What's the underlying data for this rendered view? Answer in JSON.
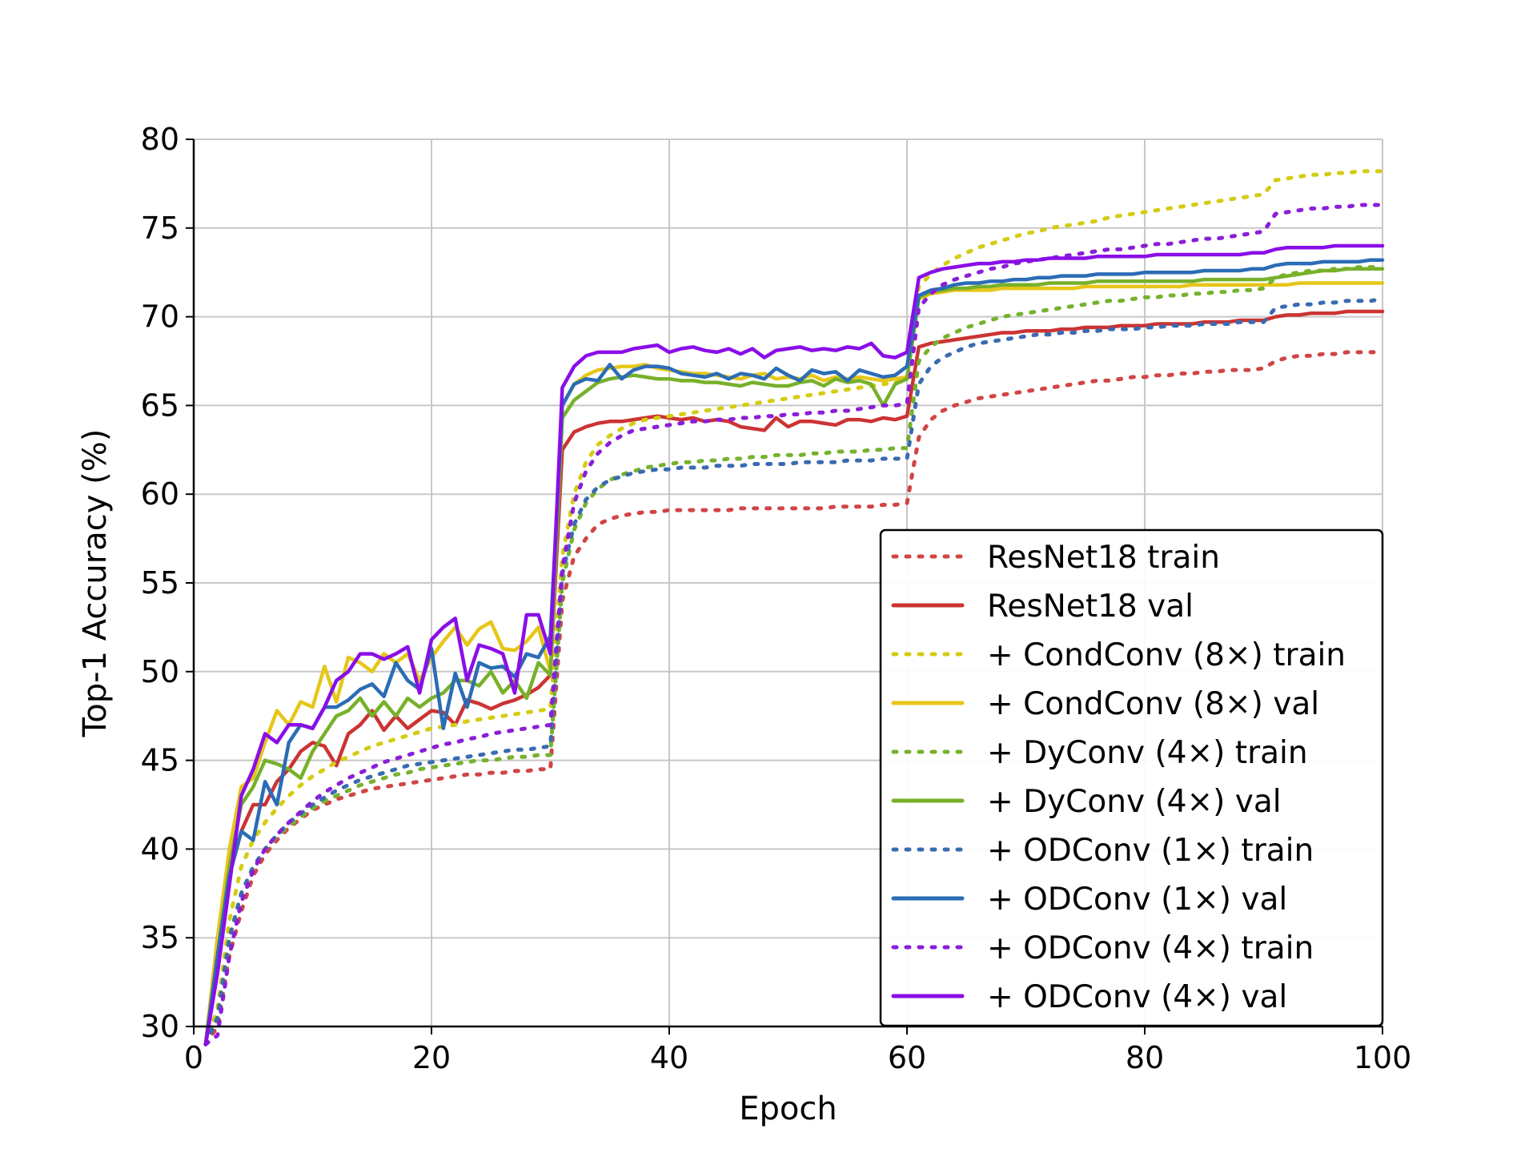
{
  "chart_data": {
    "type": "line",
    "xlabel": "Epoch",
    "ylabel": "Top-1 Accuracy (%)",
    "xlim": [
      0,
      100
    ],
    "ylim": [
      30,
      80
    ],
    "x_ticks": [
      "0",
      "20",
      "40",
      "60",
      "80",
      "100"
    ],
    "y_ticks": [
      "30",
      "35",
      "40",
      "45",
      "50",
      "55",
      "60",
      "65",
      "70",
      "75",
      "80"
    ],
    "grid": true,
    "legend_position": "bottom-right",
    "x": [
      1,
      2,
      3,
      4,
      5,
      6,
      7,
      8,
      9,
      10,
      11,
      12,
      13,
      14,
      15,
      16,
      17,
      18,
      19,
      20,
      21,
      22,
      23,
      24,
      25,
      26,
      27,
      28,
      29,
      30,
      31,
      32,
      33,
      34,
      35,
      36,
      37,
      38,
      39,
      40,
      41,
      42,
      43,
      44,
      45,
      46,
      47,
      48,
      49,
      50,
      51,
      52,
      53,
      54,
      55,
      56,
      57,
      58,
      59,
      60,
      61,
      62,
      63,
      64,
      65,
      66,
      67,
      68,
      69,
      70,
      71,
      72,
      73,
      74,
      75,
      76,
      77,
      78,
      79,
      80,
      81,
      82,
      83,
      84,
      85,
      86,
      87,
      88,
      89,
      90,
      91,
      92,
      93,
      94,
      95,
      96,
      97,
      98,
      99,
      100
    ],
    "series": [
      {
        "name": "ResNet18 train",
        "color": "#d04545",
        "dash": "dotted",
        "values": [
          29,
          30,
          34,
          36.5,
          38.5,
          39.7,
          40.5,
          41.2,
          41.7,
          42.2,
          42.5,
          42.8,
          43,
          43.2,
          43.4,
          43.5,
          43.6,
          43.7,
          43.8,
          43.9,
          44,
          44.1,
          44.2,
          44.2,
          44.3,
          44.3,
          44.4,
          44.4,
          44.5,
          44.5,
          54,
          56.5,
          57.5,
          58.3,
          58.6,
          58.8,
          58.9,
          59,
          59,
          59.1,
          59.1,
          59.1,
          59.1,
          59.1,
          59.1,
          59.2,
          59.2,
          59.2,
          59.2,
          59.2,
          59.2,
          59.2,
          59.2,
          59.3,
          59.3,
          59.3,
          59.3,
          59.4,
          59.4,
          59.5,
          63.2,
          64.2,
          64.7,
          65,
          65.2,
          65.4,
          65.5,
          65.6,
          65.7,
          65.8,
          65.9,
          66,
          66.1,
          66.2,
          66.3,
          66.4,
          66.4,
          66.5,
          66.6,
          66.6,
          66.7,
          66.7,
          66.8,
          66.8,
          66.9,
          66.9,
          67,
          67,
          67,
          67.1,
          67.5,
          67.7,
          67.8,
          67.8,
          67.9,
          67.9,
          68,
          68,
          68,
          68
        ]
      },
      {
        "name": "ResNet18 val",
        "color": "#cc3333",
        "dash": "solid",
        "values": [
          29,
          35,
          38.5,
          41,
          42.5,
          42.5,
          43.8,
          44.5,
          45.5,
          46,
          45.8,
          44.7,
          46.5,
          47,
          47.8,
          46.7,
          47.5,
          46.8,
          47.3,
          47.8,
          47.7,
          47,
          48.4,
          48.2,
          47.9,
          48.2,
          48.4,
          48.7,
          49.1,
          49.8,
          62.5,
          63.5,
          63.8,
          64,
          64.1,
          64.1,
          64.2,
          64.3,
          64.4,
          64.3,
          64.2,
          64.3,
          64.1,
          64.2,
          64.1,
          63.8,
          63.7,
          63.6,
          64.3,
          63.8,
          64.1,
          64.1,
          64,
          63.9,
          64.2,
          64.2,
          64.1,
          64.3,
          64.2,
          64.4,
          68.3,
          68.5,
          68.6,
          68.7,
          68.8,
          68.9,
          69,
          69.1,
          69.1,
          69.2,
          69.2,
          69.2,
          69.3,
          69.3,
          69.4,
          69.4,
          69.4,
          69.5,
          69.5,
          69.5,
          69.6,
          69.6,
          69.6,
          69.6,
          69.7,
          69.7,
          69.7,
          69.8,
          69.8,
          69.8,
          70,
          70.1,
          70.1,
          70.2,
          70.2,
          70.2,
          70.3,
          70.3,
          70.3,
          70.3
        ]
      },
      {
        "name": "+ CondConv (8×) train",
        "color": "#d4cc12",
        "dash": "dotted",
        "values": [
          29,
          31,
          36,
          39,
          40.5,
          41.5,
          42.3,
          43,
          43.6,
          44.1,
          44.5,
          44.9,
          45.2,
          45.5,
          45.8,
          46,
          46.2,
          46.4,
          46.6,
          46.8,
          46.9,
          47,
          47.2,
          47.3,
          47.4,
          47.5,
          47.6,
          47.7,
          47.8,
          47.9,
          56.5,
          60,
          61.8,
          62.8,
          63.3,
          63.7,
          64,
          64.2,
          64.3,
          64.4,
          64.5,
          64.6,
          64.7,
          64.8,
          64.9,
          65,
          65.1,
          65.2,
          65.3,
          65.4,
          65.5,
          65.6,
          65.7,
          65.8,
          65.9,
          66,
          66.1,
          66.2,
          66.3,
          66.4,
          71.7,
          72.4,
          72.9,
          73.3,
          73.6,
          73.9,
          74.1,
          74.3,
          74.5,
          74.7,
          74.8,
          75,
          75.1,
          75.2,
          75.3,
          75.4,
          75.6,
          75.7,
          75.8,
          75.9,
          76,
          76.1,
          76.2,
          76.3,
          76.4,
          76.5,
          76.6,
          76.7,
          76.8,
          76.9,
          77.7,
          77.8,
          77.9,
          78,
          78,
          78.1,
          78.1,
          78.2,
          78.2,
          78.2
        ]
      },
      {
        "name": "+ CondConv (8×) val",
        "color": "#e6c619",
        "dash": "solid",
        "values": [
          29,
          35,
          40,
          43.5,
          44,
          46,
          47.8,
          47,
          48.3,
          48,
          50.3,
          48.3,
          50.8,
          50.5,
          50,
          51,
          50.5,
          51,
          49.5,
          50.8,
          51.7,
          52.5,
          51.5,
          52.4,
          52.8,
          51.3,
          51.2,
          51.7,
          52.5,
          50,
          65,
          66.2,
          66.7,
          67,
          67.1,
          67.2,
          67.2,
          67.3,
          67.1,
          67,
          66.9,
          66.8,
          66.8,
          66.7,
          66.6,
          66.5,
          66.7,
          66.8,
          66.5,
          66.6,
          66.5,
          66.7,
          66.4,
          66.6,
          66.5,
          66.6,
          66.5,
          66.4,
          66.5,
          66.6,
          71,
          71.3,
          71.4,
          71.5,
          71.5,
          71.5,
          71.5,
          71.6,
          71.6,
          71.6,
          71.6,
          71.6,
          71.6,
          71.6,
          71.7,
          71.7,
          71.7,
          71.7,
          71.7,
          71.7,
          71.7,
          71.7,
          71.7,
          71.8,
          71.8,
          71.8,
          71.8,
          71.8,
          71.8,
          71.8,
          71.8,
          71.8,
          71.9,
          71.9,
          71.9,
          71.9,
          71.9,
          71.9,
          71.9,
          71.9
        ]
      },
      {
        "name": "+ DyConv (4×) train",
        "color": "#76b22e",
        "dash": "dotted",
        "values": [
          29,
          30.5,
          35,
          37.5,
          39,
          40,
          40.7,
          41.3,
          41.8,
          42.3,
          42.7,
          43,
          43.3,
          43.6,
          43.8,
          44,
          44.2,
          44.3,
          44.5,
          44.6,
          44.7,
          44.8,
          44.9,
          45,
          45,
          45.1,
          45.2,
          45.2,
          45.3,
          45.3,
          55,
          58,
          59.5,
          60.3,
          60.8,
          61.1,
          61.3,
          61.5,
          61.6,
          61.7,
          61.8,
          61.8,
          61.9,
          61.9,
          62,
          62,
          62.1,
          62.1,
          62.2,
          62.2,
          62.2,
          62.3,
          62.3,
          62.4,
          62.4,
          62.4,
          62.5,
          62.5,
          62.6,
          62.6,
          67.5,
          68.3,
          68.8,
          69.1,
          69.4,
          69.6,
          69.8,
          70,
          70.1,
          70.2,
          70.3,
          70.4,
          70.5,
          70.6,
          70.7,
          70.8,
          70.9,
          70.9,
          71,
          71.1,
          71.1,
          71.2,
          71.2,
          71.3,
          71.3,
          71.4,
          71.4,
          71.5,
          71.5,
          71.6,
          72.2,
          72.4,
          72.5,
          72.6,
          72.6,
          72.7,
          72.7,
          72.8,
          72.8,
          72.8
        ]
      },
      {
        "name": "+ DyConv (4×) val",
        "color": "#77b02a",
        "dash": "solid",
        "values": [
          29,
          34,
          39,
          42.5,
          43.5,
          45,
          44.8,
          44.5,
          44,
          45.5,
          46.5,
          47.5,
          47.8,
          48.5,
          47.5,
          48.3,
          47.5,
          48.5,
          48,
          48.5,
          48.8,
          49.5,
          49.5,
          49.2,
          50,
          48.8,
          49.5,
          48.5,
          50.5,
          49.8,
          64.3,
          65.3,
          65.8,
          66.3,
          66.5,
          66.6,
          66.7,
          66.6,
          66.5,
          66.5,
          66.4,
          66.4,
          66.3,
          66.3,
          66.2,
          66.1,
          66.3,
          66.2,
          66.1,
          66.1,
          66.3,
          66.4,
          66.1,
          66.5,
          66.3,
          66.4,
          66.2,
          65,
          66.2,
          66.5,
          71.1,
          71.4,
          71.5,
          71.6,
          71.6,
          71.7,
          71.7,
          71.8,
          71.8,
          71.8,
          71.8,
          71.9,
          71.9,
          71.9,
          71.9,
          72,
          72,
          72,
          72,
          72,
          72,
          72,
          72,
          72,
          72.1,
          72.1,
          72.1,
          72.1,
          72.1,
          72.1,
          72.2,
          72.3,
          72.4,
          72.5,
          72.6,
          72.6,
          72.7,
          72.7,
          72.7,
          72.7
        ]
      },
      {
        "name": "+ ODConv (1×) train",
        "color": "#3a6bb0",
        "dash": "dotted",
        "values": [
          29,
          30.5,
          35,
          37.5,
          39,
          40,
          40.8,
          41.5,
          42,
          42.5,
          42.9,
          43.3,
          43.6,
          43.9,
          44.1,
          44.3,
          44.5,
          44.7,
          44.8,
          44.9,
          45,
          45.1,
          45.2,
          45.3,
          45.4,
          45.5,
          45.6,
          45.6,
          45.7,
          45.8,
          55.5,
          58.3,
          59.7,
          60.4,
          60.8,
          61,
          61.2,
          61.3,
          61.4,
          61.4,
          61.5,
          61.5,
          61.5,
          61.6,
          61.6,
          61.6,
          61.7,
          61.7,
          61.7,
          61.7,
          61.8,
          61.8,
          61.8,
          61.8,
          61.9,
          61.9,
          61.9,
          62,
          62,
          62,
          66.2,
          67.2,
          67.7,
          68,
          68.3,
          68.5,
          68.6,
          68.7,
          68.8,
          68.9,
          69,
          69,
          69.1,
          69.1,
          69.2,
          69.2,
          69.3,
          69.3,
          69.3,
          69.4,
          69.4,
          69.5,
          69.5,
          69.5,
          69.6,
          69.6,
          69.6,
          69.7,
          69.7,
          69.7,
          70.5,
          70.6,
          70.7,
          70.7,
          70.8,
          70.8,
          70.9,
          70.9,
          70.9,
          71
        ]
      },
      {
        "name": "+ ODConv (1×) val",
        "color": "#2b6cb5",
        "dash": "solid",
        "values": [
          29,
          34,
          38.5,
          41,
          40.5,
          43.8,
          42.5,
          46,
          47,
          46.8,
          48,
          48,
          48.4,
          49,
          49.3,
          48.6,
          50.5,
          49.5,
          49,
          51.3,
          46.8,
          49.9,
          48,
          50.5,
          50.2,
          50.3,
          49.7,
          51,
          50.8,
          52,
          65,
          66.2,
          66.5,
          66.4,
          67.3,
          66.5,
          67,
          67.2,
          67.2,
          67.1,
          66.8,
          66.7,
          66.6,
          66.8,
          66.5,
          66.8,
          66.7,
          66.5,
          67.1,
          66.7,
          66.4,
          67,
          66.8,
          66.9,
          66.4,
          67,
          66.8,
          66.6,
          66.7,
          67.2,
          71.2,
          71.5,
          71.6,
          71.8,
          71.9,
          71.9,
          72,
          72,
          72.1,
          72.1,
          72.2,
          72.2,
          72.3,
          72.3,
          72.3,
          72.4,
          72.4,
          72.4,
          72.4,
          72.5,
          72.5,
          72.5,
          72.5,
          72.5,
          72.6,
          72.6,
          72.6,
          72.6,
          72.7,
          72.7,
          72.9,
          73,
          73,
          73,
          73.1,
          73.1,
          73.1,
          73.1,
          73.2,
          73.2
        ]
      },
      {
        "name": "+ ODConv (4×) train",
        "color": "#8a1ed8",
        "dash": "dotted",
        "values": [
          29,
          29.5,
          34,
          37,
          38.8,
          40,
          40.8,
          41.5,
          42.1,
          42.7,
          43.2,
          43.6,
          44,
          44.3,
          44.6,
          44.9,
          45.1,
          45.3,
          45.5,
          45.7,
          45.9,
          46,
          46.2,
          46.3,
          46.5,
          46.6,
          46.7,
          46.8,
          46.9,
          47,
          55.8,
          59.5,
          61.3,
          62.3,
          62.9,
          63.3,
          63.6,
          63.7,
          63.8,
          63.9,
          64,
          64.1,
          64.1,
          64.2,
          64.2,
          64.3,
          64.3,
          64.4,
          64.4,
          64.5,
          64.5,
          64.6,
          64.6,
          64.7,
          64.7,
          64.8,
          64.9,
          65,
          65,
          65.1,
          70.5,
          71.3,
          71.8,
          72.1,
          72.3,
          72.5,
          72.7,
          72.8,
          73,
          73.1,
          73.2,
          73.3,
          73.4,
          73.5,
          73.6,
          73.7,
          73.8,
          73.8,
          73.9,
          74,
          74.1,
          74.1,
          74.2,
          74.3,
          74.4,
          74.4,
          74.5,
          74.6,
          74.7,
          74.8,
          75.8,
          75.9,
          76,
          76.1,
          76.1,
          76.2,
          76.2,
          76.3,
          76.3,
          76.3
        ]
      },
      {
        "name": "+ ODConv (4×) val",
        "color": "#8a0ee8",
        "dash": "solid",
        "values": [
          29,
          33,
          38,
          43,
          44.5,
          46.5,
          46,
          47,
          47,
          46.8,
          48,
          49.5,
          50,
          51,
          51,
          50.7,
          51,
          51.4,
          48.8,
          51.8,
          52.5,
          53,
          49.5,
          51.5,
          51.3,
          51,
          48.8,
          53.2,
          53.2,
          51,
          66,
          67.2,
          67.8,
          68,
          68,
          68,
          68.2,
          68.3,
          68.4,
          68,
          68.2,
          68.3,
          68.1,
          68,
          68.2,
          67.9,
          68.2,
          67.7,
          68.1,
          68.2,
          68.3,
          68.1,
          68.2,
          68.1,
          68.3,
          68.2,
          68.5,
          67.8,
          67.7,
          68,
          72.2,
          72.5,
          72.7,
          72.8,
          72.9,
          73,
          73,
          73.1,
          73.1,
          73.2,
          73.2,
          73.3,
          73.3,
          73.3,
          73.3,
          73.4,
          73.4,
          73.4,
          73.4,
          73.4,
          73.5,
          73.5,
          73.5,
          73.5,
          73.5,
          73.5,
          73.5,
          73.5,
          73.6,
          73.6,
          73.8,
          73.9,
          73.9,
          73.9,
          73.9,
          74,
          74,
          74,
          74,
          74
        ]
      }
    ]
  }
}
